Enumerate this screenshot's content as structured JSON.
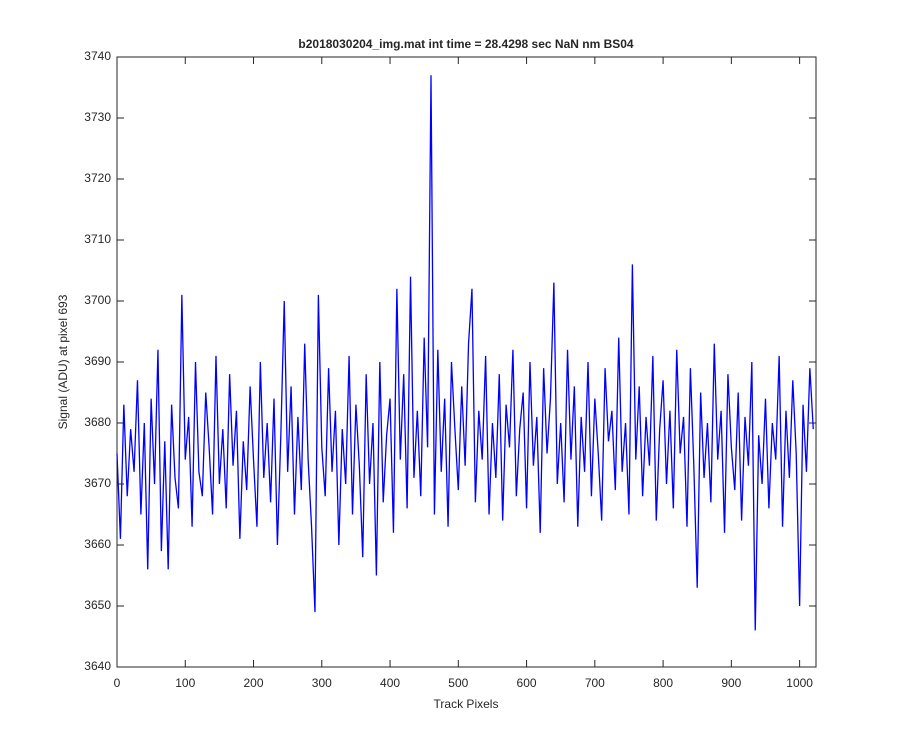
{
  "chart_data": {
    "type": "line",
    "title": "b2018030204_img.mat int time = 28.4298 sec  NaN nm BS04",
    "xlabel": "Track Pixels",
    "ylabel": "Signal (ADU) at pixel 693",
    "xlim": [
      0,
      1024
    ],
    "ylim": [
      3640,
      3740
    ],
    "xticks": [
      0,
      100,
      200,
      300,
      400,
      500,
      600,
      700,
      800,
      900,
      1000
    ],
    "yticks": [
      3640,
      3650,
      3660,
      3670,
      3680,
      3690,
      3700,
      3710,
      3720,
      3730,
      3740
    ],
    "grid": false,
    "x": [
      0,
      5,
      10,
      15,
      20,
      25,
      30,
      35,
      40,
      45,
      50,
      55,
      60,
      65,
      70,
      75,
      80,
      85,
      90,
      95,
      100,
      105,
      110,
      115,
      120,
      125,
      130,
      135,
      140,
      145,
      150,
      155,
      160,
      165,
      170,
      175,
      180,
      185,
      190,
      195,
      200,
      205,
      210,
      215,
      220,
      225,
      230,
      235,
      240,
      245,
      250,
      255,
      260,
      265,
      270,
      275,
      280,
      285,
      290,
      295,
      300,
      305,
      310,
      315,
      320,
      325,
      330,
      335,
      340,
      345,
      350,
      355,
      360,
      365,
      370,
      375,
      380,
      385,
      390,
      395,
      400,
      405,
      410,
      415,
      420,
      425,
      430,
      435,
      440,
      445,
      450,
      455,
      460,
      465,
      470,
      475,
      480,
      485,
      490,
      495,
      500,
      505,
      510,
      515,
      520,
      525,
      530,
      535,
      540,
      545,
      550,
      555,
      560,
      565,
      570,
      575,
      580,
      585,
      590,
      595,
      600,
      605,
      610,
      615,
      620,
      625,
      630,
      635,
      640,
      645,
      650,
      655,
      660,
      665,
      670,
      675,
      680,
      685,
      690,
      695,
      700,
      705,
      710,
      715,
      720,
      725,
      730,
      735,
      740,
      745,
      750,
      755,
      760,
      765,
      770,
      775,
      780,
      785,
      790,
      795,
      800,
      805,
      810,
      815,
      820,
      825,
      830,
      835,
      840,
      845,
      850,
      855,
      860,
      865,
      870,
      875,
      880,
      885,
      890,
      895,
      900,
      905,
      910,
      915,
      920,
      925,
      930,
      935,
      940,
      945,
      950,
      955,
      960,
      965,
      970,
      975,
      980,
      985,
      990,
      995,
      1000,
      1005,
      1010,
      1015,
      1020
    ],
    "series": [
      {
        "color": "#0000ff",
        "values": [
          3675,
          3661,
          3683,
          3668,
          3679,
          3672,
          3687,
          3665,
          3680,
          3656,
          3684,
          3670,
          3692,
          3659,
          3677,
          3656,
          3683,
          3671,
          3666,
          3701,
          3674,
          3681,
          3663,
          3690,
          3672,
          3668,
          3685,
          3676,
          3665,
          3691,
          3670,
          3679,
          3666,
          3688,
          3673,
          3682,
          3661,
          3677,
          3669,
          3686,
          3674,
          3663,
          3690,
          3671,
          3680,
          3667,
          3684,
          3660,
          3678,
          3700,
          3672,
          3686,
          3665,
          3681,
          3669,
          3693,
          3674,
          3663,
          3649,
          3701,
          3676,
          3668,
          3689,
          3672,
          3682,
          3660,
          3679,
          3670,
          3691,
          3665,
          3683,
          3673,
          3658,
          3688,
          3670,
          3680,
          3655,
          3690,
          3667,
          3678,
          3684,
          3662,
          3702,
          3674,
          3688,
          3666,
          3704,
          3671,
          3682,
          3668,
          3694,
          3676,
          3737,
          3665,
          3692,
          3672,
          3684,
          3663,
          3690,
          3679,
          3669,
          3686,
          3673,
          3693,
          3702,
          3667,
          3682,
          3674,
          3691,
          3665,
          3680,
          3671,
          3688,
          3664,
          3683,
          3676,
          3692,
          3668,
          3679,
          3685,
          3666,
          3690,
          3673,
          3681,
          3662,
          3689,
          3675,
          3684,
          3703,
          3670,
          3680,
          3667,
          3692,
          3674,
          3686,
          3663,
          3681,
          3672,
          3690,
          3668,
          3684,
          3675,
          3664,
          3689,
          3677,
          3682,
          3669,
          3694,
          3672,
          3680,
          3665,
          3706,
          3674,
          3686,
          3668,
          3681,
          3673,
          3691,
          3664,
          3679,
          3687,
          3670,
          3682,
          3666,
          3692,
          3675,
          3681,
          3663,
          3689,
          3673,
          3653,
          3685,
          3671,
          3680,
          3667,
          3693,
          3674,
          3682,
          3662,
          3688,
          3676,
          3669,
          3685,
          3664,
          3681,
          3673,
          3690,
          3646,
          3678,
          3670,
          3684,
          3666,
          3680,
          3674,
          3691,
          3663,
          3682,
          3671,
          3687,
          3675,
          3650,
          3683,
          3672,
          3689,
          3679
        ]
      }
    ]
  }
}
